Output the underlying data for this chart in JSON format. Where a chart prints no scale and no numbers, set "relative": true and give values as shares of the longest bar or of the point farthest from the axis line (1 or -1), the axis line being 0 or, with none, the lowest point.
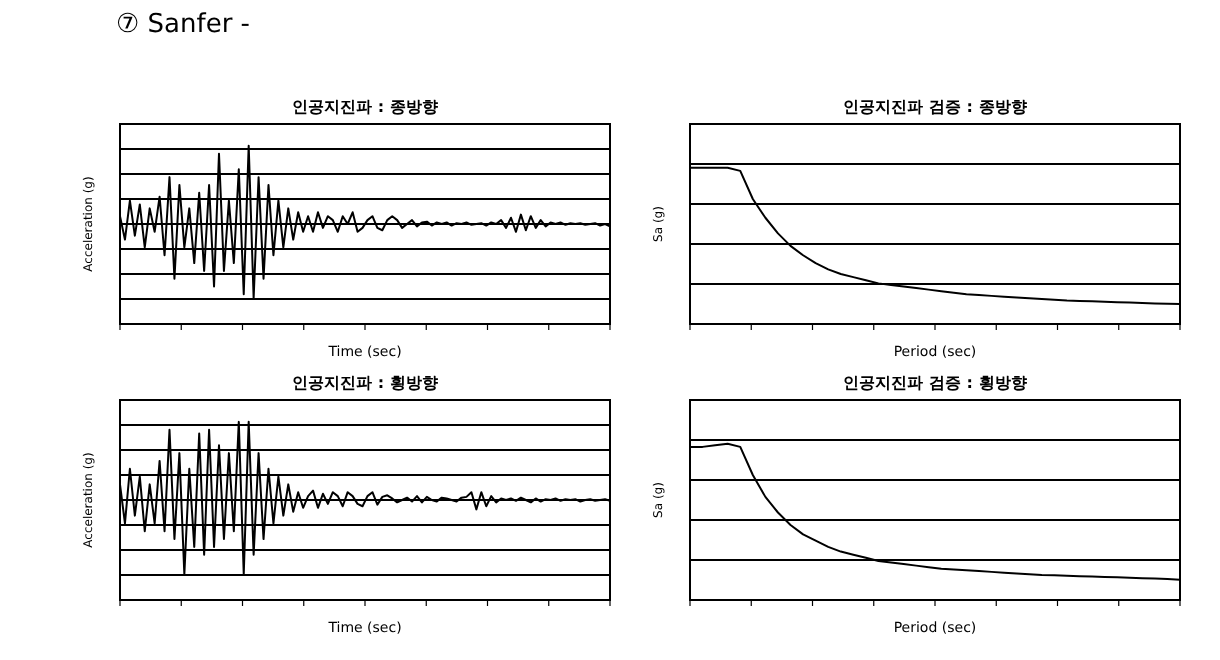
{
  "chart_data": [
    {
      "type": "line",
      "title": "인공지진파 : 종방향",
      "xlabel": "Time (sec)",
      "ylabel": "Acceleration (g)",
      "relative": true,
      "grid": "y",
      "annotations": [
        "⑦ Sanfer -"
      ],
      "color": "#000000",
      "categories": [
        null,
        null,
        null,
        null,
        null,
        null,
        null,
        null,
        null,
        null,
        null,
        null,
        null,
        null,
        null,
        null,
        null,
        null,
        null,
        null,
        null,
        null,
        null,
        null,
        null,
        null,
        null,
        null,
        null,
        null,
        null,
        null,
        null,
        null,
        null,
        null,
        null,
        null,
        null,
        null,
        null,
        null,
        null,
        null,
        null,
        null,
        null,
        null,
        null,
        null,
        null,
        null,
        null,
        null,
        null,
        null,
        null,
        null,
        null,
        null,
        null,
        null,
        null,
        null,
        null,
        null,
        null,
        null,
        null,
        null,
        null,
        null,
        null,
        null,
        null,
        null,
        null,
        null,
        null,
        null,
        null,
        null,
        null,
        null,
        null,
        null,
        null,
        null,
        null,
        null,
        null,
        null,
        null,
        null,
        null,
        null,
        null,
        null,
        null,
        null
      ],
      "values": [
        0.1,
        -0.2,
        0.3,
        -0.15,
        0.25,
        -0.3,
        0.2,
        -0.1,
        0.35,
        -0.4,
        0.6,
        -0.7,
        0.5,
        -0.3,
        0.2,
        -0.5,
        0.4,
        -0.6,
        0.5,
        -0.8,
        0.9,
        -0.6,
        0.3,
        -0.5,
        0.7,
        -0.9,
        1.0,
        -0.95,
        0.6,
        -0.7,
        0.5,
        -0.4,
        0.3,
        -0.3,
        0.2,
        -0.2,
        0.15,
        -0.1,
        0.1,
        -0.1,
        0.15,
        -0.05,
        0.1,
        0.05,
        -0.1,
        0.1,
        0.0,
        0.15,
        -0.1,
        -0.05,
        0.05,
        0.1,
        -0.05,
        -0.08,
        0.05,
        0.1,
        0.05,
        -0.05,
        0.0,
        0.05,
        -0.03,
        0.02,
        0.03,
        -0.02,
        0.02,
        0.0,
        0.02,
        -0.02,
        0.01,
        0.0,
        0.02,
        -0.01,
        0.0,
        0.01,
        -0.02,
        0.02,
        0.0,
        0.05,
        -0.05,
        0.08,
        -0.1,
        0.12,
        -0.08,
        0.1,
        -0.05,
        0.05,
        -0.03,
        0.02,
        0.0,
        0.02,
        -0.01,
        0.01,
        0.0,
        0.01,
        -0.01,
        0.0,
        0.01,
        -0.02,
        0.0,
        -0.03
      ]
    },
    {
      "type": "line",
      "title": "인공지진파 검증 : 종방향",
      "xlabel": "Period (sec)",
      "ylabel": "Sa (g)",
      "relative": true,
      "grid": "y",
      "color": "#000000",
      "categories": [
        null,
        null,
        null,
        null,
        null,
        null,
        null,
        null,
        null,
        null,
        null,
        null,
        null,
        null,
        null,
        null,
        null,
        null,
        null,
        null,
        null,
        null,
        null,
        null,
        null,
        null,
        null,
        null,
        null,
        null,
        null,
        null,
        null,
        null,
        null,
        null,
        null,
        null,
        null,
        null
      ],
      "values": [
        1.0,
        1.0,
        1.0,
        1.0,
        0.98,
        0.8,
        0.68,
        0.58,
        0.5,
        0.44,
        0.39,
        0.35,
        0.32,
        0.3,
        0.28,
        0.26,
        0.25,
        0.24,
        0.23,
        0.22,
        0.21,
        0.2,
        0.19,
        0.185,
        0.18,
        0.175,
        0.17,
        0.165,
        0.16,
        0.155,
        0.15,
        0.148,
        0.145,
        0.142,
        0.14,
        0.138,
        0.135,
        0.132,
        0.13,
        0.128
      ]
    },
    {
      "type": "line",
      "title": "인공지진파 : 횡방향",
      "xlabel": "Time (sec)",
      "ylabel": "Acceleration (g)",
      "relative": true,
      "grid": "y",
      "color": "#000000",
      "categories": [
        null,
        null,
        null,
        null,
        null,
        null,
        null,
        null,
        null,
        null,
        null,
        null,
        null,
        null,
        null,
        null,
        null,
        null,
        null,
        null,
        null,
        null,
        null,
        null,
        null,
        null,
        null,
        null,
        null,
        null,
        null,
        null,
        null,
        null,
        null,
        null,
        null,
        null,
        null,
        null,
        null,
        null,
        null,
        null,
        null,
        null,
        null,
        null,
        null,
        null,
        null,
        null,
        null,
        null,
        null,
        null,
        null,
        null,
        null,
        null,
        null,
        null,
        null,
        null,
        null,
        null,
        null,
        null,
        null,
        null,
        null,
        null,
        null,
        null,
        null,
        null,
        null,
        null,
        null,
        null,
        null,
        null,
        null,
        null,
        null,
        null,
        null,
        null,
        null,
        null,
        null,
        null,
        null,
        null,
        null,
        null,
        null,
        null,
        null,
        null
      ],
      "values": [
        0.2,
        -0.3,
        0.4,
        -0.2,
        0.3,
        -0.4,
        0.2,
        -0.3,
        0.5,
        -0.4,
        0.9,
        -0.5,
        0.6,
        -0.95,
        0.4,
        -0.6,
        0.85,
        -0.7,
        0.9,
        -0.6,
        0.7,
        -0.5,
        0.6,
        -0.4,
        1.0,
        -0.95,
        1.0,
        -0.7,
        0.6,
        -0.5,
        0.4,
        -0.3,
        0.3,
        -0.2,
        0.2,
        -0.15,
        0.1,
        -0.1,
        0.05,
        0.12,
        -0.1,
        0.08,
        -0.05,
        0.1,
        0.05,
        -0.08,
        0.1,
        0.05,
        -0.05,
        -0.08,
        0.05,
        0.1,
        -0.06,
        0.04,
        0.06,
        0.02,
        -0.03,
        0.0,
        0.03,
        -0.02,
        0.05,
        -0.03,
        0.04,
        0.0,
        -0.02,
        0.03,
        0.02,
        0.0,
        -0.02,
        0.03,
        0.04,
        0.1,
        -0.12,
        0.1,
        -0.08,
        0.05,
        -0.03,
        0.02,
        0.0,
        0.02,
        -0.01,
        0.03,
        0.0,
        -0.03,
        0.02,
        -0.02,
        0.01,
        0.0,
        0.02,
        -0.01,
        0.01,
        0.0,
        0.01,
        -0.02,
        0.0,
        0.01,
        -0.01,
        0.0,
        0.01,
        -0.01
      ]
    },
    {
      "type": "line",
      "title": "인공지진파 검증 : 횡방향",
      "xlabel": "Period (sec)",
      "ylabel": "Sa (g)",
      "relative": true,
      "grid": "y",
      "color": "#000000",
      "categories": [
        null,
        null,
        null,
        null,
        null,
        null,
        null,
        null,
        null,
        null,
        null,
        null,
        null,
        null,
        null,
        null,
        null,
        null,
        null,
        null,
        null,
        null,
        null,
        null,
        null,
        null,
        null,
        null,
        null,
        null,
        null,
        null,
        null,
        null,
        null,
        null,
        null,
        null,
        null,
        null
      ],
      "values": [
        0.98,
        0.98,
        0.99,
        1.0,
        0.98,
        0.8,
        0.66,
        0.56,
        0.48,
        0.42,
        0.38,
        0.34,
        0.31,
        0.29,
        0.27,
        0.25,
        0.24,
        0.23,
        0.22,
        0.21,
        0.2,
        0.195,
        0.19,
        0.185,
        0.18,
        0.175,
        0.17,
        0.165,
        0.16,
        0.158,
        0.155,
        0.152,
        0.15,
        0.148,
        0.145,
        0.142,
        0.14,
        0.138,
        0.135,
        0.13
      ]
    }
  ]
}
